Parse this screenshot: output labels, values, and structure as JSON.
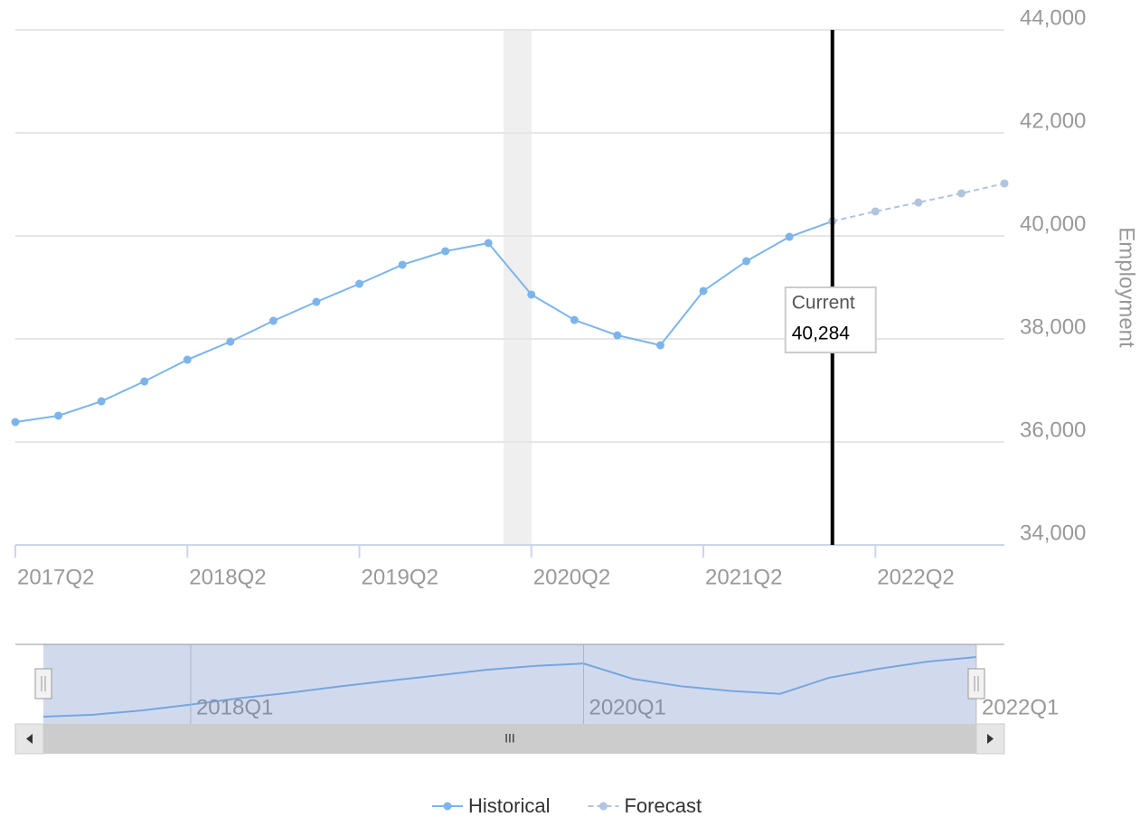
{
  "chart_data": {
    "type": "line",
    "y_axis_title": "Employment",
    "categories": [
      "2017Q2",
      "2017Q3",
      "2017Q4",
      "2018Q1",
      "2018Q2",
      "2018Q3",
      "2018Q4",
      "2019Q1",
      "2019Q2",
      "2019Q3",
      "2019Q4",
      "2020Q1",
      "2020Q2",
      "2020Q3",
      "2020Q4",
      "2021Q1",
      "2021Q2",
      "2021Q3",
      "2021Q4",
      "2022Q1",
      "2022Q2",
      "2022Q3",
      "2022Q4",
      "2023Q1"
    ],
    "series": [
      {
        "name": "Historical",
        "color": "#7cb5ec",
        "dashed": false,
        "values": [
          36386,
          36509,
          36789,
          37175,
          37596,
          37947,
          38351,
          38719,
          39070,
          39439,
          39702,
          39860,
          38860,
          38368,
          38070,
          37877,
          38930,
          39509,
          39982,
          40284,
          null,
          null,
          null,
          null
        ]
      },
      {
        "name": "Forecast",
        "color": "#b0c4de",
        "dashed": true,
        "values": [
          null,
          null,
          null,
          null,
          null,
          null,
          null,
          null,
          null,
          null,
          null,
          null,
          null,
          null,
          null,
          null,
          null,
          null,
          null,
          40284,
          40474,
          40649,
          40825,
          41018
        ]
      }
    ],
    "ylim": [
      34000,
      44000
    ],
    "yticks": [
      {
        "value": 34000,
        "label": "34,000"
      },
      {
        "value": 36000,
        "label": "36,000"
      },
      {
        "value": 38000,
        "label": "38,000"
      },
      {
        "value": 40000,
        "label": "40,000"
      },
      {
        "value": 42000,
        "label": "42,000"
      },
      {
        "value": 44000,
        "label": "44,000"
      }
    ],
    "xticks": [
      "2017Q2",
      "2018Q2",
      "2019Q2",
      "2020Q2",
      "2021Q2",
      "2022Q2"
    ],
    "grid": true,
    "current": {
      "x": "2022Q1",
      "label": "Current",
      "value": 40284,
      "value_label": "40,284"
    },
    "navigator_xticks": [
      "2018Q1",
      "2020Q1",
      "2022Q1"
    ],
    "legend": "bottom"
  }
}
